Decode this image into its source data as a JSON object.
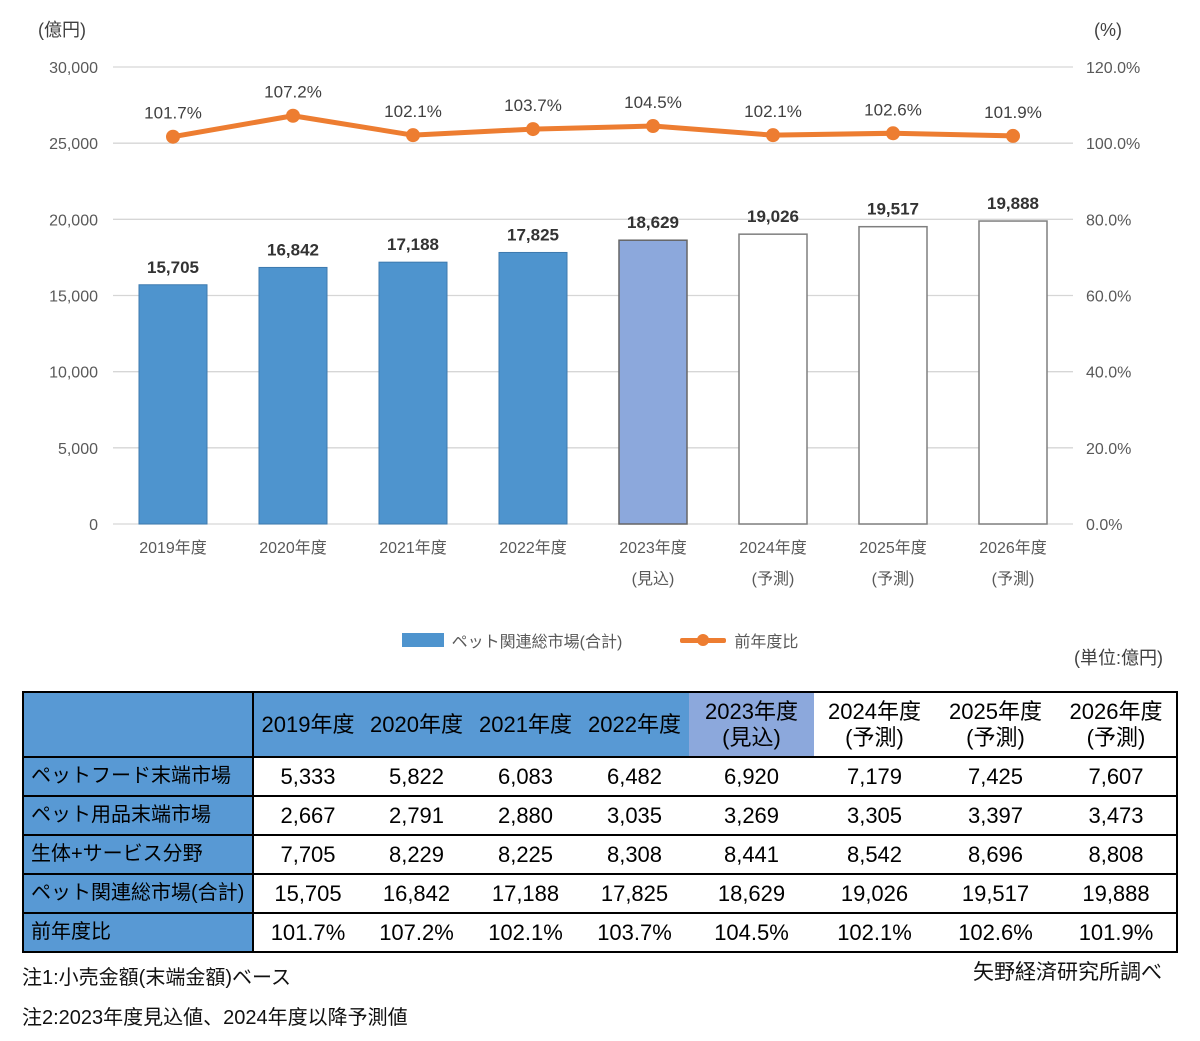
{
  "chart_data": {
    "type": "combo-bar-line",
    "categories": [
      "2019年度",
      "2020年度",
      "2021年度",
      "2022年度",
      "2023年度",
      "2024年度",
      "2025年度",
      "2026年度"
    ],
    "category_sublabels": [
      "",
      "",
      "",
      "",
      "(見込)",
      "(予測)",
      "(予測)",
      "(予測)"
    ],
    "series": [
      {
        "name": "ペット関連総市場(合計)",
        "type": "bar",
        "axis": "left",
        "values": [
          15705,
          16842,
          17188,
          17825,
          18629,
          19026,
          19517,
          19888
        ],
        "labels": [
          "15,705",
          "16,842",
          "17,188",
          "17,825",
          "18,629",
          "19,026",
          "19,517",
          "19,888"
        ]
      },
      {
        "name": "前年度比",
        "type": "line",
        "axis": "right",
        "values": [
          101.7,
          107.2,
          102.1,
          103.7,
          104.5,
          102.1,
          102.6,
          101.9
        ],
        "labels": [
          "101.7%",
          "107.2%",
          "102.1%",
          "103.7%",
          "104.5%",
          "102.1%",
          "102.6%",
          "101.9%"
        ]
      }
    ],
    "bar_kinds": [
      "actual",
      "actual",
      "actual",
      "actual",
      "estimate",
      "forecast",
      "forecast",
      "forecast"
    ],
    "left_axis": {
      "label": "(億円)",
      "min": 0,
      "max": 30000,
      "step": 5000,
      "ticks": [
        "30,000",
        "25,000",
        "20,000",
        "15,000",
        "10,000",
        "5,000",
        "0"
      ]
    },
    "right_axis": {
      "label": "(%)",
      "min": 0,
      "max": 120,
      "step": 20,
      "ticks": [
        "120.0%",
        "100.0%",
        "80.0%",
        "60.0%",
        "40.0%",
        "20.0%",
        "0.0%"
      ]
    },
    "grid": true,
    "legend_position": "bottom",
    "colors": {
      "bar_actual": "#4E94CE",
      "bar_actual_stroke": "#3D7AAE",
      "bar_estimate": "#8CA8DC",
      "bar_estimate_stroke": "#666666",
      "bar_forecast_fill": "#FFFFFF",
      "bar_forecast_stroke": "#7F7F7F",
      "line": "#ED7D31",
      "grid": "#D6D6D6",
      "table_header_blue": "#5899D4",
      "table_header_light": "#8CA8DC"
    }
  },
  "legend": {
    "items": [
      {
        "label": "ペット関連総市場(合計)",
        "type": "bar"
      },
      {
        "label": "前年度比",
        "type": "line"
      }
    ]
  },
  "table": {
    "unit_note": "(単位:億円)",
    "columns": [
      {
        "label": "2019年度",
        "sub": "",
        "kind": "actual"
      },
      {
        "label": "2020年度",
        "sub": "",
        "kind": "actual"
      },
      {
        "label": "2021年度",
        "sub": "",
        "kind": "actual"
      },
      {
        "label": "2022年度",
        "sub": "",
        "kind": "actual"
      },
      {
        "label": "2023年度",
        "sub": "(見込)",
        "kind": "estimate"
      },
      {
        "label": "2024年度",
        "sub": "(予測)",
        "kind": "forecast"
      },
      {
        "label": "2025年度",
        "sub": "(予測)",
        "kind": "forecast"
      },
      {
        "label": "2026年度",
        "sub": "(予測)",
        "kind": "forecast"
      }
    ],
    "rows": [
      {
        "label": "ペットフード末端市場",
        "values": [
          "5,333",
          "5,822",
          "6,083",
          "6,482",
          "6,920",
          "7,179",
          "7,425",
          "7,607"
        ]
      },
      {
        "label": "ペット用品末端市場",
        "values": [
          "2,667",
          "2,791",
          "2,880",
          "3,035",
          "3,269",
          "3,305",
          "3,397",
          "3,473"
        ]
      },
      {
        "label": "生体+サービス分野",
        "values": [
          "7,705",
          "8,229",
          "8,225",
          "8,308",
          "8,441",
          "8,542",
          "8,696",
          "8,808"
        ]
      },
      {
        "label": "ペット関連総市場(合計)",
        "values": [
          "15,705",
          "16,842",
          "17,188",
          "17,825",
          "18,629",
          "19,026",
          "19,517",
          "19,888"
        ]
      },
      {
        "label": "前年度比",
        "values": [
          "101.7%",
          "107.2%",
          "102.1%",
          "103.7%",
          "104.5%",
          "102.1%",
          "102.6%",
          "101.9%"
        ]
      }
    ]
  },
  "notes": [
    "注1:小売金額(末端金額)ベース",
    "注2:2023年度見込値、2024年度以降予測値"
  ],
  "source": "矢野経済研究所調べ"
}
